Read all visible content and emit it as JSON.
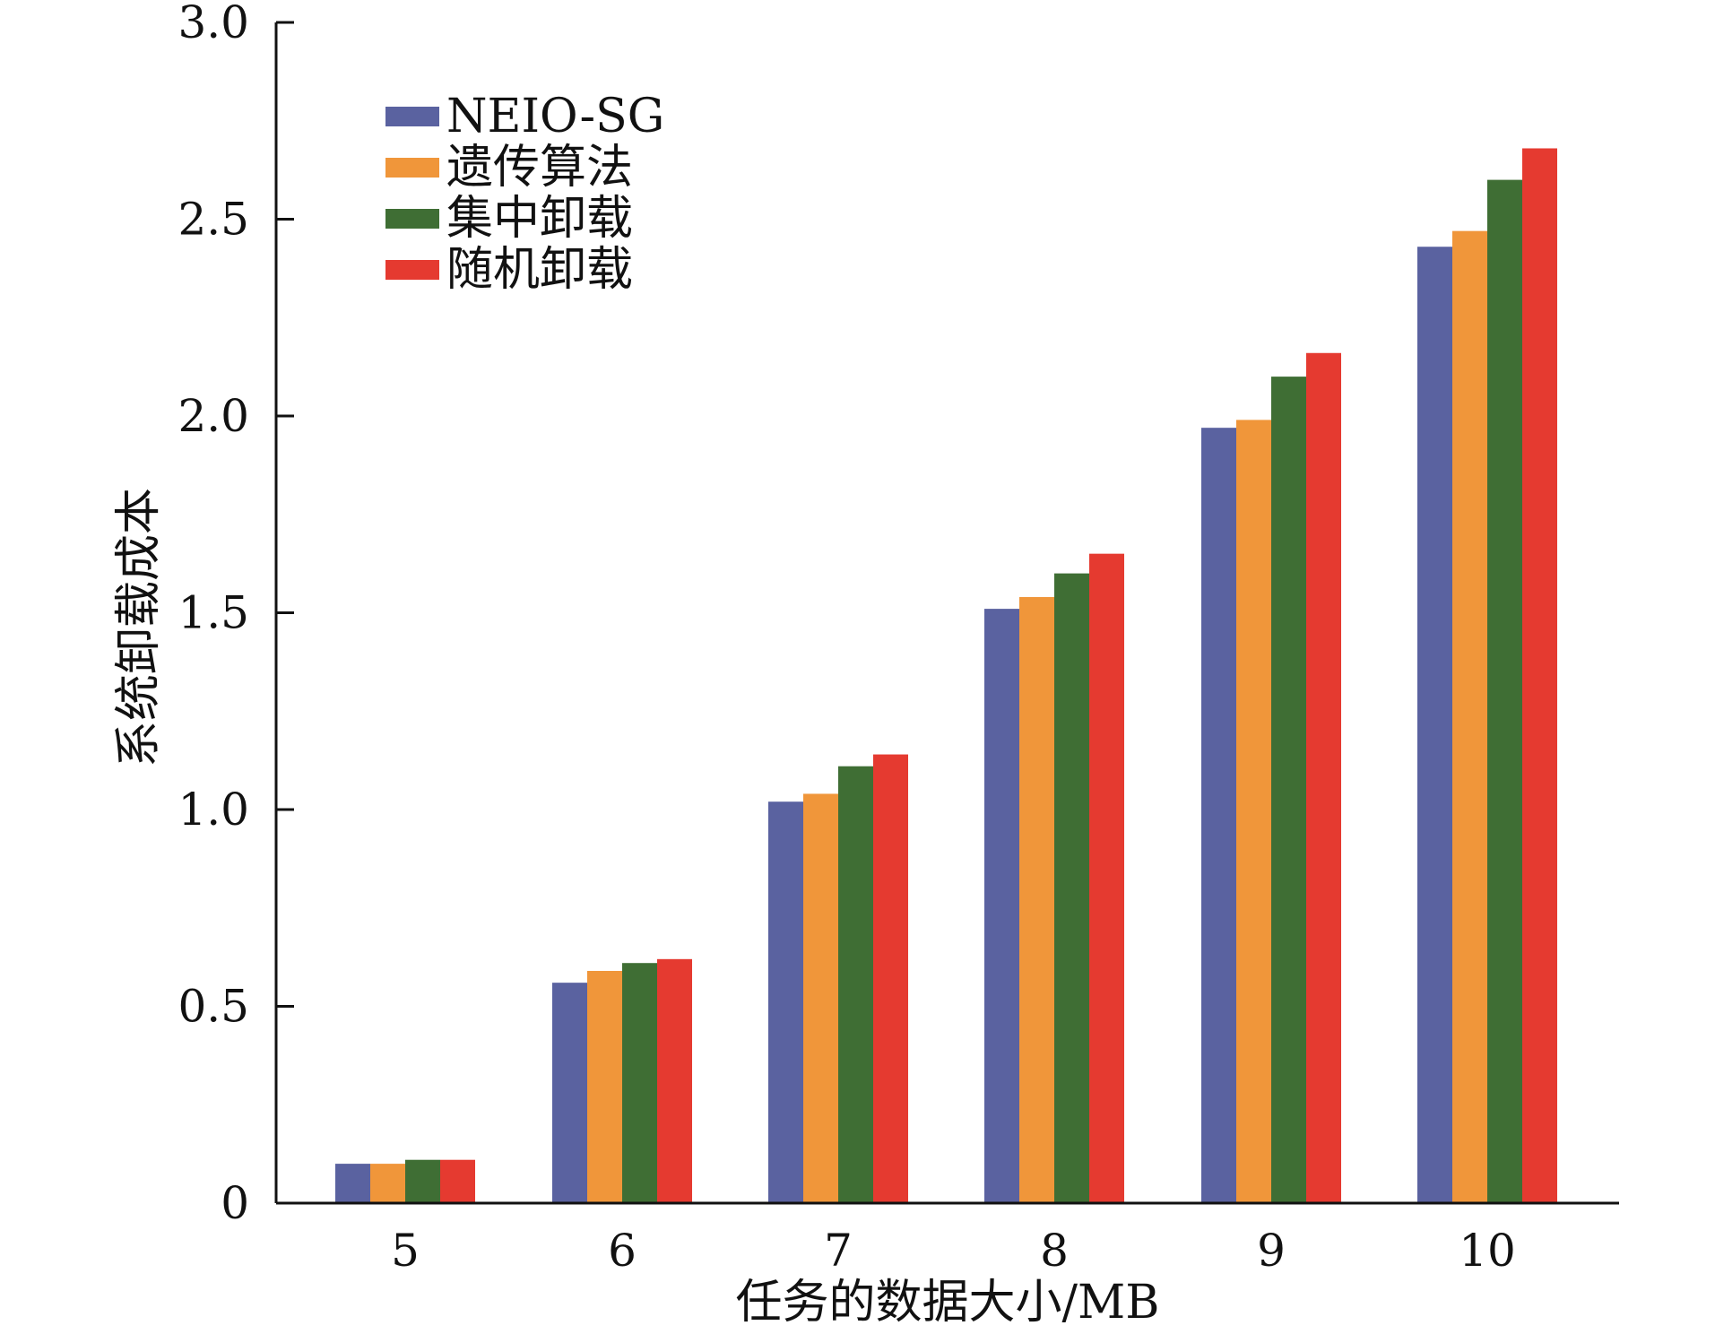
{
  "chart_data": {
    "type": "bar",
    "categories": [
      "5",
      "6",
      "7",
      "8",
      "9",
      "10"
    ],
    "series": [
      {
        "name": "NEIO-SG",
        "color": "#5a62a0",
        "values": [
          0.1,
          0.56,
          1.02,
          1.51,
          1.97,
          2.43
        ]
      },
      {
        "name": "遗传算法",
        "color": "#f0963a",
        "values": [
          0.1,
          0.59,
          1.04,
          1.54,
          1.99,
          2.47
        ]
      },
      {
        "name": "集中卸载",
        "color": "#3f6e34",
        "values": [
          0.11,
          0.61,
          1.11,
          1.6,
          2.1,
          2.6
        ]
      },
      {
        "name": "随机卸载",
        "color": "#e53a30",
        "values": [
          0.11,
          0.62,
          1.14,
          1.65,
          2.16,
          2.68
        ]
      }
    ],
    "xlabel": "任务的数据大小/MB",
    "ylabel": "系统卸载成本",
    "ylim": [
      0,
      3.0
    ],
    "yticks": [
      {
        "value": 0,
        "label": "0"
      },
      {
        "value": 0.5,
        "label": "0.5"
      },
      {
        "value": 1.0,
        "label": "1.0"
      },
      {
        "value": 1.5,
        "label": "1.5"
      },
      {
        "value": 2.0,
        "label": "2.0"
      },
      {
        "value": 2.5,
        "label": "2.5"
      },
      {
        "value": 3.0,
        "label": "3.0"
      }
    ],
    "grid": false,
    "legend_position": "top-left"
  }
}
